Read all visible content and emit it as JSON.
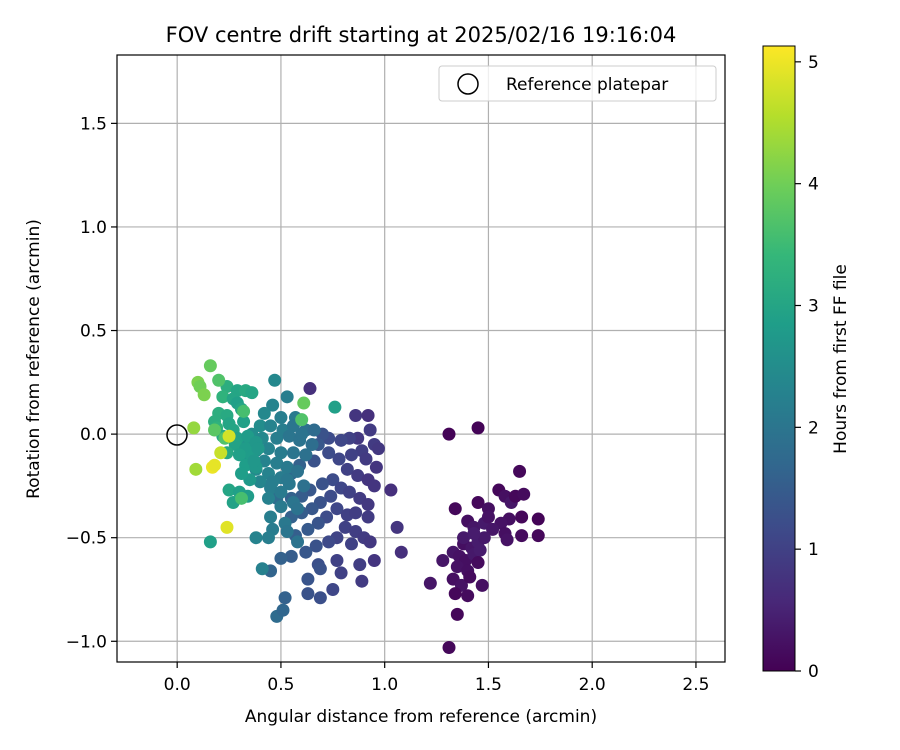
{
  "chart_data": {
    "type": "scatter",
    "title": "FOV centre drift starting at 2025/02/16 19:16:04",
    "xlabel": "Angular distance from reference (arcmin)",
    "ylabel": "Rotation from reference (arcmin)",
    "xlim": [
      -0.29,
      2.64
    ],
    "ylim": [
      -1.1,
      1.83
    ],
    "xticks": [
      0.0,
      0.5,
      1.0,
      1.5,
      2.0,
      2.5
    ],
    "xtick_labels": [
      "0.0",
      "0.5",
      "1.0",
      "1.5",
      "2.0",
      "2.5"
    ],
    "yticks": [
      -1.0,
      -0.5,
      0.0,
      0.5,
      1.0,
      1.5
    ],
    "ytick_labels": [
      "−1.0",
      "−0.5",
      "0.0",
      "0.5",
      "1.0",
      "1.5"
    ],
    "grid": true,
    "legend": {
      "position": "upper right",
      "entries": [
        {
          "label": "Reference platepar",
          "marker": "open-circle"
        }
      ]
    },
    "reference_point": {
      "x": 0.0,
      "y": 0.0
    },
    "colorbar": {
      "label": "Hours from first FF file",
      "colormap": "viridis",
      "range": [
        0,
        5.13
      ],
      "ticks": [
        0,
        1,
        2,
        3,
        4,
        5
      ],
      "tick_labels": [
        "0",
        "1",
        "2",
        "3",
        "4",
        "5"
      ]
    },
    "colors": {
      "viridis": [
        "#440154",
        "#482878",
        "#3e4989",
        "#31688e",
        "#26828e",
        "#1f9e89",
        "#35b779",
        "#6ece58",
        "#b5de2b",
        "#fde725"
      ],
      "grid": "#b0b0b0",
      "axes": "#000000"
    },
    "series": [
      {
        "points": [
          [
            1.31,
            0.0,
            0.05
          ],
          [
            1.45,
            0.03,
            0.05
          ],
          [
            1.65,
            -0.18,
            0.1
          ],
          [
            1.34,
            -0.36,
            0.1
          ],
          [
            1.45,
            -0.33,
            0.1
          ],
          [
            1.5,
            -0.36,
            0.2
          ],
          [
            1.55,
            -0.27,
            0.1
          ],
          [
            1.58,
            -0.3,
            0.2
          ],
          [
            1.61,
            -0.33,
            0.3
          ],
          [
            1.63,
            -0.3,
            0.1
          ],
          [
            1.67,
            -0.29,
            0.15
          ],
          [
            1.6,
            -0.41,
            0.2
          ],
          [
            1.56,
            -0.43,
            0.25
          ],
          [
            1.74,
            -0.41,
            0.05
          ],
          [
            1.66,
            -0.4,
            0.1
          ],
          [
            1.4,
            -0.42,
            0.2
          ],
          [
            1.43,
            -0.45,
            0.3
          ],
          [
            1.48,
            -0.43,
            0.35
          ],
          [
            1.52,
            -0.46,
            0.3
          ],
          [
            1.58,
            -0.48,
            0.2
          ],
          [
            1.66,
            -0.49,
            0.15
          ],
          [
            1.74,
            -0.49,
            0.1
          ],
          [
            1.59,
            -0.51,
            0.25
          ],
          [
            1.38,
            -0.53,
            0.2
          ],
          [
            1.42,
            -0.55,
            0.3
          ],
          [
            1.45,
            -0.52,
            0.4
          ],
          [
            1.48,
            -0.5,
            0.35
          ],
          [
            1.33,
            -0.57,
            0.3
          ],
          [
            1.36,
            -0.59,
            0.25
          ],
          [
            1.39,
            -0.61,
            0.2
          ],
          [
            1.43,
            -0.58,
            0.35
          ],
          [
            1.46,
            -0.56,
            0.4
          ],
          [
            1.28,
            -0.61,
            0.3
          ],
          [
            1.35,
            -0.64,
            0.25
          ],
          [
            1.4,
            -0.66,
            0.2
          ],
          [
            1.45,
            -0.62,
            0.15
          ],
          [
            1.33,
            -0.7,
            0.2
          ],
          [
            1.37,
            -0.73,
            0.25
          ],
          [
            1.41,
            -0.69,
            0.15
          ],
          [
            1.47,
            -0.73,
            0.2
          ],
          [
            1.22,
            -0.72,
            0.3
          ],
          [
            1.34,
            -0.77,
            0.1
          ],
          [
            1.4,
            -0.78,
            0.15
          ],
          [
            1.35,
            -0.87,
            0.1
          ],
          [
            1.31,
            -1.03,
            0.1
          ],
          [
            1.38,
            -0.5,
            0.35
          ],
          [
            1.43,
            -0.48,
            0.4
          ],
          [
            1.5,
            -0.4,
            0.25
          ]
        ]
      },
      {
        "points": [
          [
            0.64,
            0.22,
            0.7
          ],
          [
            0.86,
            0.09,
            0.8
          ],
          [
            0.92,
            0.09,
            0.7
          ],
          [
            0.93,
            0.02,
            0.9
          ],
          [
            0.87,
            -0.02,
            0.85
          ],
          [
            0.83,
            -0.02,
            1.0
          ],
          [
            0.95,
            -0.05,
            0.9
          ],
          [
            0.97,
            -0.07,
            0.85
          ],
          [
            0.79,
            -0.03,
            1.1
          ],
          [
            0.73,
            -0.02,
            1.2
          ],
          [
            0.7,
            0.0,
            1.3
          ],
          [
            0.68,
            -0.05,
            1.4
          ],
          [
            0.89,
            -0.08,
            0.95
          ],
          [
            0.84,
            -0.1,
            1.0
          ],
          [
            0.91,
            -0.12,
            0.9
          ],
          [
            0.96,
            -0.16,
            0.8
          ],
          [
            0.78,
            -0.12,
            1.1
          ],
          [
            0.73,
            -0.09,
            1.2
          ],
          [
            0.66,
            -0.13,
            1.3
          ],
          [
            0.62,
            -0.1,
            1.5
          ],
          [
            0.59,
            -0.15,
            1.6
          ],
          [
            0.55,
            -0.19,
            1.7
          ],
          [
            0.82,
            -0.17,
            1.0
          ],
          [
            0.87,
            -0.2,
            0.9
          ],
          [
            0.92,
            -0.22,
            0.8
          ],
          [
            0.95,
            -0.25,
            0.8
          ],
          [
            1.03,
            -0.27,
            0.7
          ],
          [
            0.75,
            -0.22,
            1.2
          ],
          [
            0.7,
            -0.24,
            1.3
          ],
          [
            0.64,
            -0.27,
            1.4
          ],
          [
            0.6,
            -0.3,
            1.5
          ],
          [
            0.55,
            -0.31,
            1.6
          ],
          [
            0.48,
            -0.31,
            1.8
          ],
          [
            0.79,
            -0.26,
            1.1
          ],
          [
            0.83,
            -0.28,
            1.0
          ],
          [
            0.88,
            -0.31,
            0.9
          ],
          [
            0.92,
            -0.34,
            0.85
          ],
          [
            0.74,
            -0.3,
            1.2
          ],
          [
            0.69,
            -0.33,
            1.3
          ],
          [
            0.65,
            -0.36,
            1.4
          ],
          [
            0.6,
            -0.38,
            1.5
          ],
          [
            0.55,
            -0.4,
            1.6
          ],
          [
            0.77,
            -0.36,
            1.1
          ],
          [
            0.82,
            -0.39,
            1.0
          ],
          [
            0.86,
            -0.38,
            0.95
          ],
          [
            0.92,
            -0.4,
            0.9
          ],
          [
            0.72,
            -0.4,
            1.2
          ],
          [
            0.68,
            -0.43,
            1.35
          ],
          [
            0.63,
            -0.46,
            1.45
          ],
          [
            0.57,
            -0.49,
            1.55
          ],
          [
            0.81,
            -0.45,
            1.0
          ],
          [
            0.86,
            -0.47,
            0.95
          ],
          [
            0.9,
            -0.5,
            0.9
          ],
          [
            0.77,
            -0.5,
            1.05
          ],
          [
            0.73,
            -0.52,
            1.15
          ],
          [
            0.67,
            -0.54,
            1.3
          ],
          [
            0.62,
            -0.57,
            1.4
          ],
          [
            1.06,
            -0.45,
            0.8
          ],
          [
            0.93,
            -0.52,
            0.85
          ],
          [
            0.84,
            -0.53,
            1.0
          ],
          [
            1.08,
            -0.57,
            0.7
          ],
          [
            0.95,
            -0.61,
            0.8
          ],
          [
            0.77,
            -0.61,
            1.0
          ],
          [
            0.68,
            -0.63,
            1.25
          ],
          [
            0.55,
            -0.59,
            1.5
          ],
          [
            0.5,
            -0.6,
            1.6
          ],
          [
            0.69,
            -0.65,
            1.3
          ],
          [
            0.89,
            -0.71,
            0.9
          ],
          [
            0.63,
            -0.7,
            1.35
          ],
          [
            0.75,
            -0.75,
            1.1
          ],
          [
            0.69,
            -0.79,
            1.25
          ],
          [
            0.63,
            -0.77,
            1.3
          ],
          [
            0.52,
            -0.79,
            1.6
          ],
          [
            0.48,
            -0.88,
            1.8
          ],
          [
            0.51,
            -0.85,
            1.7
          ],
          [
            0.79,
            -0.67,
            1.0
          ],
          [
            0.88,
            -0.63,
            0.95
          ],
          [
            0.45,
            -0.66,
            1.65
          ]
        ]
      },
      {
        "points": [
          [
            0.47,
            0.26,
            2.4
          ],
          [
            0.53,
            0.18,
            2.2
          ],
          [
            0.46,
            0.14,
            2.3
          ],
          [
            0.42,
            0.1,
            2.4
          ],
          [
            0.5,
            0.08,
            2.2
          ],
          [
            0.57,
            0.08,
            2.1
          ],
          [
            0.4,
            0.04,
            2.5
          ],
          [
            0.45,
            0.04,
            2.3
          ],
          [
            0.51,
            0.02,
            2.2
          ],
          [
            0.56,
            0.04,
            2.0
          ],
          [
            0.62,
            0.02,
            1.9
          ],
          [
            0.36,
            0.0,
            2.5
          ],
          [
            0.41,
            -0.02,
            2.4
          ],
          [
            0.48,
            -0.02,
            2.2
          ],
          [
            0.54,
            -0.01,
            2.0
          ],
          [
            0.59,
            -0.03,
            1.95
          ],
          [
            0.65,
            -0.05,
            1.85
          ],
          [
            0.33,
            -0.05,
            2.6
          ],
          [
            0.38,
            -0.08,
            2.4
          ],
          [
            0.44,
            -0.07,
            2.3
          ],
          [
            0.5,
            -0.09,
            2.15
          ],
          [
            0.56,
            -0.09,
            2.0
          ],
          [
            0.62,
            -0.1,
            1.9
          ],
          [
            0.35,
            -0.12,
            2.5
          ],
          [
            0.42,
            -0.13,
            2.3
          ],
          [
            0.48,
            -0.14,
            2.2
          ],
          [
            0.53,
            -0.16,
            2.1
          ],
          [
            0.58,
            -0.18,
            1.95
          ],
          [
            0.38,
            -0.17,
            2.4
          ],
          [
            0.44,
            -0.19,
            2.3
          ],
          [
            0.5,
            -0.21,
            2.15
          ],
          [
            0.54,
            -0.24,
            2.05
          ],
          [
            0.4,
            -0.23,
            2.35
          ],
          [
            0.45,
            -0.26,
            2.2
          ],
          [
            0.5,
            -0.28,
            2.1
          ],
          [
            0.56,
            -0.33,
            2.0
          ],
          [
            0.44,
            -0.31,
            2.25
          ],
          [
            0.5,
            -0.35,
            2.1
          ],
          [
            0.58,
            -0.36,
            1.95
          ],
          [
            0.45,
            -0.4,
            2.2
          ],
          [
            0.52,
            -0.43,
            2.05
          ],
          [
            0.46,
            -0.46,
            2.15
          ],
          [
            0.53,
            -0.47,
            2.0
          ],
          [
            0.44,
            -0.5,
            2.2
          ],
          [
            0.58,
            -0.52,
            1.95
          ],
          [
            0.38,
            -0.5,
            2.3
          ],
          [
            0.41,
            -0.65,
            2.25
          ],
          [
            0.53,
            -0.22,
            2.05
          ],
          [
            0.61,
            -0.25,
            1.9
          ],
          [
            0.46,
            -0.23,
            2.2
          ],
          [
            0.6,
            0.0,
            1.95
          ],
          [
            0.66,
            0.02,
            1.8
          ]
        ]
      },
      {
        "points": [
          [
            0.24,
            0.23,
            3.2
          ],
          [
            0.29,
            0.21,
            3.0
          ],
          [
            0.33,
            0.21,
            3.1
          ],
          [
            0.36,
            0.2,
            3.0
          ],
          [
            0.22,
            0.18,
            3.3
          ],
          [
            0.27,
            0.17,
            3.0
          ],
          [
            0.29,
            0.15,
            2.9
          ],
          [
            0.31,
            0.12,
            3.0
          ],
          [
            0.2,
            0.1,
            3.2
          ],
          [
            0.24,
            0.09,
            3.1
          ],
          [
            0.18,
            0.06,
            3.2
          ],
          [
            0.25,
            0.05,
            3.0
          ],
          [
            0.32,
            0.06,
            2.9
          ],
          [
            0.19,
            0.03,
            3.3
          ],
          [
            0.27,
            0.02,
            3.0
          ],
          [
            0.22,
            -0.01,
            3.1
          ],
          [
            0.29,
            -0.02,
            2.9
          ],
          [
            0.34,
            -0.01,
            2.8
          ],
          [
            0.28,
            -0.05,
            2.95
          ],
          [
            0.33,
            -0.07,
            2.8
          ],
          [
            0.24,
            -0.09,
            3.05
          ],
          [
            0.3,
            -0.1,
            2.9
          ],
          [
            0.36,
            -0.11,
            2.8
          ],
          [
            0.33,
            -0.15,
            2.85
          ],
          [
            0.38,
            -0.16,
            2.7
          ],
          [
            0.35,
            -0.22,
            2.75
          ],
          [
            0.25,
            -0.27,
            3.0
          ],
          [
            0.3,
            -0.28,
            2.9
          ],
          [
            0.34,
            -0.3,
            2.8
          ],
          [
            0.27,
            -0.33,
            2.95
          ],
          [
            0.16,
            -0.52,
            2.9
          ],
          [
            0.38,
            -0.04,
            2.7
          ],
          [
            0.39,
            -0.07,
            2.7
          ],
          [
            0.37,
            -0.13,
            2.7
          ],
          [
            0.31,
            -0.19,
            2.85
          ],
          [
            0.76,
            0.13,
            2.9
          ]
        ]
      },
      {
        "points": [
          [
            0.16,
            0.33,
            3.9
          ],
          [
            0.2,
            0.26,
            3.7
          ],
          [
            0.1,
            0.25,
            4.1
          ],
          [
            0.11,
            0.23,
            4.0
          ],
          [
            0.13,
            0.19,
            4.1
          ],
          [
            0.61,
            0.15,
            3.9
          ],
          [
            0.6,
            0.07,
            3.7
          ],
          [
            0.08,
            0.03,
            4.3
          ],
          [
            0.32,
            0.11,
            3.6
          ],
          [
            0.31,
            -0.31,
            3.6
          ],
          [
            0.18,
            0.02,
            3.8
          ],
          [
            0.09,
            -0.17,
            4.4
          ],
          [
            0.23,
            -0.02,
            3.7
          ]
        ]
      },
      {
        "points": [
          [
            0.17,
            -0.16,
            5.0
          ],
          [
            0.18,
            -0.15,
            4.95
          ],
          [
            0.24,
            -0.45,
            4.9
          ],
          [
            0.25,
            -0.01,
            4.8
          ],
          [
            0.21,
            -0.09,
            4.7
          ]
        ]
      }
    ]
  }
}
